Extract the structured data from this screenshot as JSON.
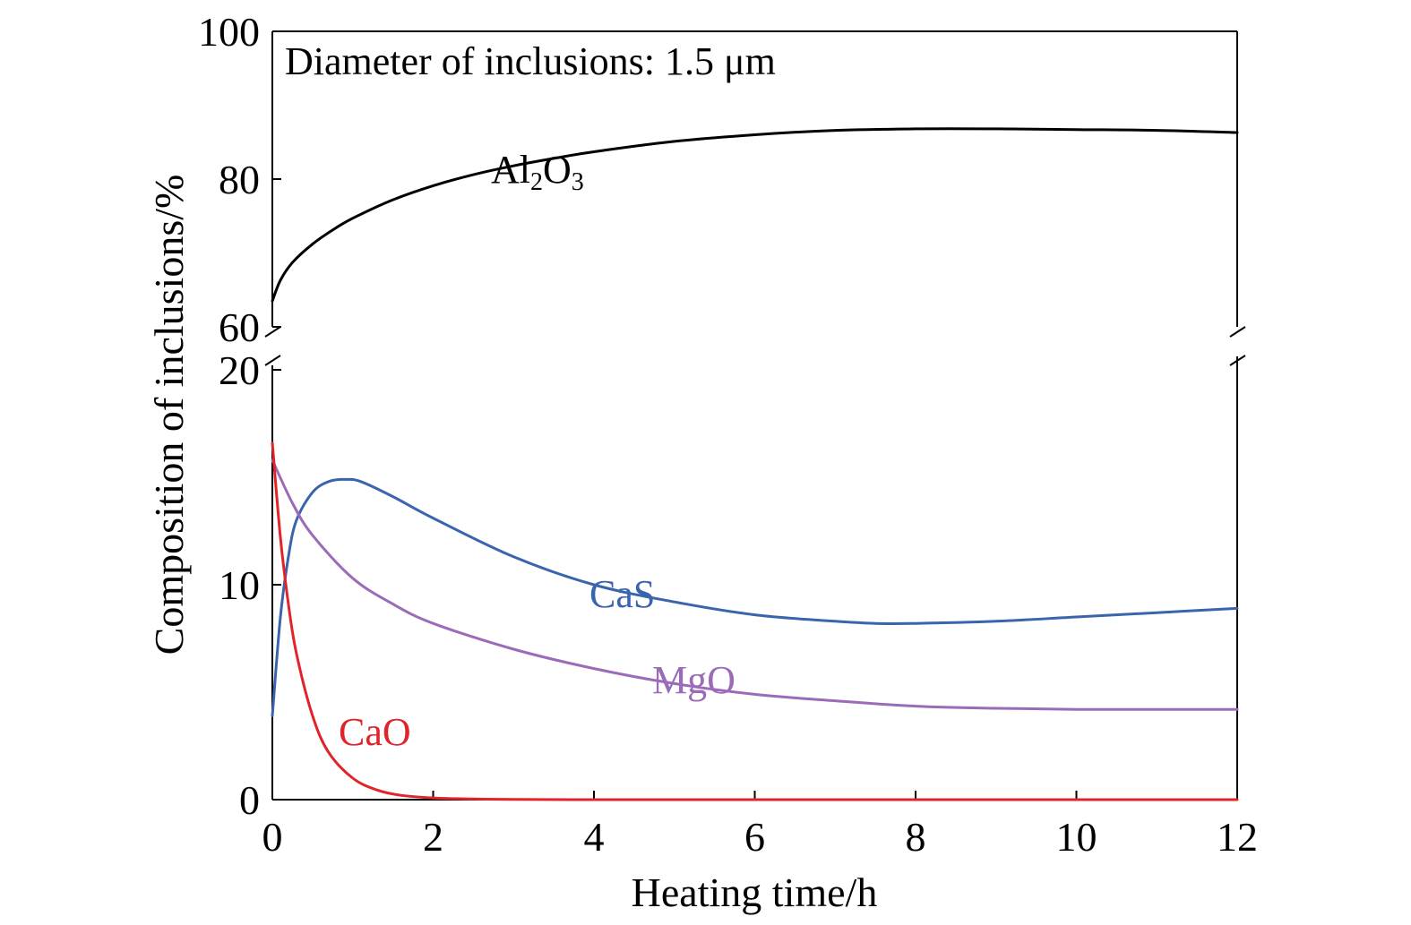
{
  "chart_data": {
    "type": "line",
    "annotation": "Diameter of inclusions: 1.5 μm",
    "xlabel": "Heating time/h",
    "ylabel": "Composition of inclusions/%",
    "xlim": [
      0,
      12
    ],
    "x_ticks": [
      "0",
      "2",
      "4",
      "6",
      "8",
      "10",
      "12"
    ],
    "y_axis_break": true,
    "y_upper_range": [
      60,
      100
    ],
    "y_upper_ticks": [
      "60",
      "80",
      "100"
    ],
    "y_lower_range": [
      0,
      20
    ],
    "y_lower_ticks": [
      "0",
      "10",
      "20"
    ],
    "grid": false,
    "series": [
      {
        "name": "Al₂O₃",
        "label_parts": {
          "base": "Al",
          "sub1": "2",
          "mid": "O",
          "sub2": "3"
        },
        "panel": "upper",
        "color": "#000000",
        "x": [
          0,
          0.1,
          0.25,
          0.5,
          0.75,
          1,
          1.5,
          2,
          2.5,
          3,
          3.5,
          4,
          5,
          6,
          7,
          8,
          9,
          10,
          11,
          12
        ],
        "y": [
          63.5,
          66.3,
          68.7,
          71.2,
          73.1,
          74.7,
          77.2,
          79.1,
          80.6,
          81.8,
          82.8,
          83.7,
          85.1,
          86.0,
          86.6,
          86.8,
          86.8,
          86.7,
          86.6,
          86.3
        ]
      },
      {
        "name": "CaS",
        "panel": "lower",
        "color": "#3a64ae",
        "x": [
          0,
          0.1,
          0.2,
          0.3,
          0.5,
          0.7,
          0.9,
          1.1,
          1.5,
          2,
          3,
          4,
          5,
          6,
          7,
          7.5,
          8,
          9,
          10,
          11,
          12
        ],
        "y": [
          3.9,
          8.5,
          11.3,
          13.0,
          14.3,
          14.8,
          14.9,
          14.8,
          14.1,
          13.1,
          11.3,
          10.0,
          9.2,
          8.6,
          8.3,
          8.2,
          8.2,
          8.3,
          8.5,
          8.7,
          8.9
        ]
      },
      {
        "name": "MgO",
        "panel": "lower",
        "color": "#9b6ab8",
        "x": [
          0,
          0.25,
          0.5,
          1,
          1.5,
          2,
          3,
          4,
          5,
          6,
          7,
          8,
          9,
          10,
          11,
          12
        ],
        "y": [
          15.8,
          13.8,
          12.3,
          10.3,
          9.1,
          8.2,
          7.0,
          6.1,
          5.4,
          4.9,
          4.6,
          4.35,
          4.25,
          4.2,
          4.2,
          4.2
        ]
      },
      {
        "name": "CaO",
        "panel": "lower",
        "color": "#e0242a",
        "x": [
          0,
          0.1,
          0.2,
          0.3,
          0.5,
          0.7,
          1,
          1.3,
          1.6,
          2,
          2.5,
          3,
          4,
          6,
          8,
          10,
          12
        ],
        "y": [
          16.6,
          12.2,
          9.1,
          6.8,
          3.9,
          2.2,
          1.0,
          0.45,
          0.2,
          0.08,
          0.03,
          0.01,
          0,
          0,
          0,
          0,
          0
        ]
      }
    ]
  }
}
